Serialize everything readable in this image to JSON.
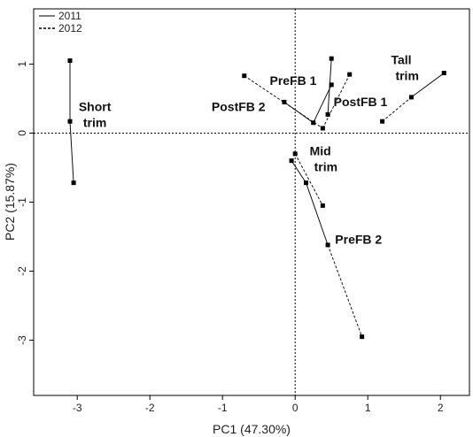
{
  "chart_data": {
    "type": "scatter",
    "xlabel": "PC1 (47.30%)",
    "ylabel": "PC2 (15.87%)",
    "xlim": [
      -3.6,
      2.4
    ],
    "ylim": [
      -3.8,
      1.8
    ],
    "xticks": [
      -3,
      -2,
      -1,
      0,
      1,
      2
    ],
    "yticks": [
      -3,
      -2,
      -1,
      0,
      1
    ],
    "reference_lines": {
      "x": 0,
      "y": 0,
      "style": "dotted"
    },
    "grid": false,
    "legend": {
      "placement": "top-left",
      "entries": [
        {
          "label": "2011",
          "line_style": "solid",
          "color": "#555555"
        },
        {
          "label": "2012",
          "line_style": "dashed",
          "color": "#000000"
        }
      ]
    },
    "series": [
      {
        "year": "2011",
        "line_style": "solid",
        "segments": [
          {
            "from": [
              -3.1,
              1.05
            ],
            "to": [
              -3.1,
              0.17
            ]
          },
          {
            "from": [
              -3.1,
              0.17
            ],
            "to": [
              -3.05,
              -0.72
            ]
          },
          {
            "from": [
              0.45,
              0.27
            ],
            "to": [
              0.5,
              1.08
            ]
          },
          {
            "from": [
              0.5,
              0.7
            ],
            "to": [
              0.25,
              0.15
            ]
          },
          {
            "from": [
              -0.15,
              0.45
            ],
            "to": [
              0.25,
              0.15
            ]
          },
          {
            "from": [
              1.6,
              0.52
            ],
            "to": [
              2.05,
              0.87
            ]
          },
          {
            "from": [
              -0.05,
              -0.4
            ],
            "to": [
              0.15,
              -0.72
            ]
          },
          {
            "from": [
              0.15,
              -0.72
            ],
            "to": [
              0.45,
              -1.62
            ]
          }
        ]
      },
      {
        "year": "2012",
        "line_style": "dashed",
        "segments": [
          {
            "from": [
              -0.7,
              0.83
            ],
            "to": [
              0.38,
              0.07
            ]
          },
          {
            "from": [
              0.38,
              0.07
            ],
            "to": [
              0.75,
              0.85
            ]
          },
          {
            "from": [
              1.2,
              0.17
            ],
            "to": [
              1.6,
              0.52
            ]
          },
          {
            "from": [
              0.0,
              -0.3
            ],
            "to": [
              0.38,
              -1.05
            ]
          },
          {
            "from": [
              0.45,
              -1.62
            ],
            "to": [
              0.92,
              -2.95
            ]
          }
        ]
      }
    ],
    "points": [
      {
        "x": -3.1,
        "y": 1.05
      },
      {
        "x": -3.1,
        "y": 0.17
      },
      {
        "x": -3.05,
        "y": -0.72
      },
      {
        "x": 0.5,
        "y": 1.08
      },
      {
        "x": 0.5,
        "y": 0.7
      },
      {
        "x": 0.45,
        "y": 0.27
      },
      {
        "x": 0.25,
        "y": 0.15
      },
      {
        "x": -0.15,
        "y": 0.45
      },
      {
        "x": -0.7,
        "y": 0.83
      },
      {
        "x": 0.38,
        "y": 0.07
      },
      {
        "x": 0.75,
        "y": 0.85
      },
      {
        "x": 1.2,
        "y": 0.17
      },
      {
        "x": 1.6,
        "y": 0.52
      },
      {
        "x": 2.05,
        "y": 0.87
      },
      {
        "x": -0.05,
        "y": -0.4
      },
      {
        "x": 0.0,
        "y": -0.3
      },
      {
        "x": 0.15,
        "y": -0.72
      },
      {
        "x": 0.38,
        "y": -1.05
      },
      {
        "x": 0.45,
        "y": -1.62
      },
      {
        "x": 0.92,
        "y": -2.95
      }
    ],
    "annotations": [
      {
        "lines": [
          "Short",
          "trim"
        ],
        "x": -2.98,
        "y": 0.32,
        "align": "start"
      },
      {
        "lines": [
          "PreFB 1"
        ],
        "x": -0.35,
        "y": 0.7,
        "align": "start"
      },
      {
        "lines": [
          "PostFB 2"
        ],
        "x": -1.15,
        "y": 0.32,
        "align": "start"
      },
      {
        "lines": [
          "PostFB 1"
        ],
        "x": 0.53,
        "y": 0.39,
        "align": "start"
      },
      {
        "lines": [
          "Tall",
          "trim"
        ],
        "x": 1.32,
        "y": 1.0,
        "align": "start"
      },
      {
        "lines": [
          "Mid",
          "trim"
        ],
        "x": 0.2,
        "y": -0.32,
        "align": "start"
      },
      {
        "lines": [
          "PreFB 2"
        ],
        "x": 0.55,
        "y": -1.6,
        "align": "start"
      }
    ]
  }
}
